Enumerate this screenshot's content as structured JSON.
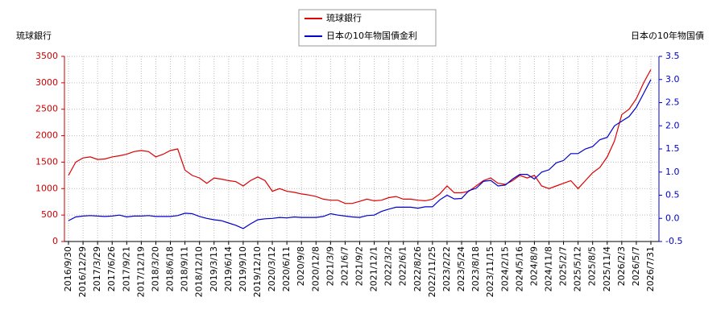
{
  "chart_data": {
    "type": "line",
    "ylabel": "琉球銀行",
    "y2label": "日本の10年物国債",
    "x": [
      "2016/9/30",
      null,
      "2016/12/29",
      null,
      "2017/3/29",
      null,
      "2017/6/26",
      null,
      "2017/9/21",
      null,
      "2017/12/19",
      null,
      "2018/3/20",
      null,
      "2018/6/18",
      null,
      "2018/9/11",
      null,
      "2018/12/10",
      null,
      "2019/3/13",
      null,
      "2019/6/14",
      null,
      "2019/9/10",
      null,
      "2019/12/10",
      null,
      "2020/3/12",
      null,
      "2020/6/11",
      null,
      "2020/9/8",
      null,
      "2020/12/8",
      null,
      "2021/3/9",
      null,
      "2021/6/7",
      null,
      "2021/9/2",
      null,
      "2021/12/1",
      null,
      "2022/3/2",
      null,
      "2022/6/1",
      null,
      "2022/8/26",
      null,
      "2022/11/25",
      null,
      "2023/2/22",
      null,
      "2023/5/24",
      null,
      "2023/8/18",
      null,
      "2023/11/15",
      null,
      "2024/2/15",
      null,
      "2024/5/16",
      null,
      "2024/8/9",
      null,
      "2024/11/8",
      null,
      "2025/2/7",
      null,
      "2025/5/12",
      null,
      "2025/8/5",
      null,
      "2025/11/4",
      null,
      "2026/2/3",
      null,
      "2026/5/7",
      null,
      "2026/7/31"
    ],
    "series": [
      {
        "name": "琉球銀行",
        "color": "#dd0000",
        "values": [
          1250,
          1500,
          1580,
          1600,
          1550,
          1560,
          1600,
          1620,
          1650,
          1700,
          1720,
          1700,
          1600,
          1650,
          1720,
          1750,
          1350,
          1250,
          1200,
          1100,
          1200,
          1180,
          1150,
          1130,
          1050,
          1150,
          1220,
          1150,
          950,
          1000,
          950,
          930,
          900,
          880,
          850,
          800,
          780,
          780,
          720,
          720,
          760,
          800,
          770,
          780,
          830,
          850,
          800,
          800,
          780,
          770,
          800,
          900,
          1050,
          920,
          920,
          950,
          1050,
          1150,
          1200,
          1100,
          1080,
          1150,
          1250,
          1200,
          1250,
          1050,
          1000,
          1050,
          1100,
          1150,
          1000,
          1150,
          1300,
          1400,
          1600,
          1900,
          2400,
          2500,
          2700,
          3000,
          3250
        ]
      },
      {
        "name": "日本の10年物国債金利",
        "color": "#0000cc",
        "axis": "y2",
        "values": [
          -0.05,
          0.03,
          0.05,
          0.06,
          0.05,
          0.04,
          0.05,
          0.07,
          0.03,
          0.05,
          0.05,
          0.06,
          0.04,
          0.04,
          0.04,
          0.06,
          0.11,
          0.1,
          0.04,
          0.0,
          -0.03,
          -0.05,
          -0.1,
          -0.15,
          -0.22,
          -0.12,
          -0.03,
          -0.01,
          0.0,
          0.02,
          0.01,
          0.03,
          0.02,
          0.02,
          0.02,
          0.04,
          0.1,
          0.07,
          0.05,
          0.03,
          0.02,
          0.06,
          0.07,
          0.15,
          0.2,
          0.24,
          0.24,
          0.24,
          0.22,
          0.25,
          0.25,
          0.4,
          0.5,
          0.42,
          0.43,
          0.6,
          0.65,
          0.8,
          0.82,
          0.7,
          0.72,
          0.85,
          0.95,
          0.95,
          0.85,
          1.0,
          1.05,
          1.2,
          1.25,
          1.4,
          1.4,
          1.5,
          1.55,
          1.7,
          1.75,
          2.0,
          2.1,
          2.2,
          2.4,
          2.7,
          3.0
        ]
      }
    ],
    "ylim": [
      0,
      3500
    ],
    "yticks": [
      0,
      500,
      1000,
      1500,
      2000,
      2500,
      3000,
      3500
    ],
    "y2lim": [
      -0.5,
      3.5
    ],
    "y2ticks": [
      -0.5,
      {
        "value": 0,
        "label": "0.0"
      },
      0.5,
      {
        "value": 1,
        "label": "1.0"
      },
      1.5,
      {
        "value": 2,
        "label": "2.0"
      },
      2.5,
      {
        "value": 3,
        "label": "3.0"
      },
      3.5
    ],
    "grid": true
  }
}
